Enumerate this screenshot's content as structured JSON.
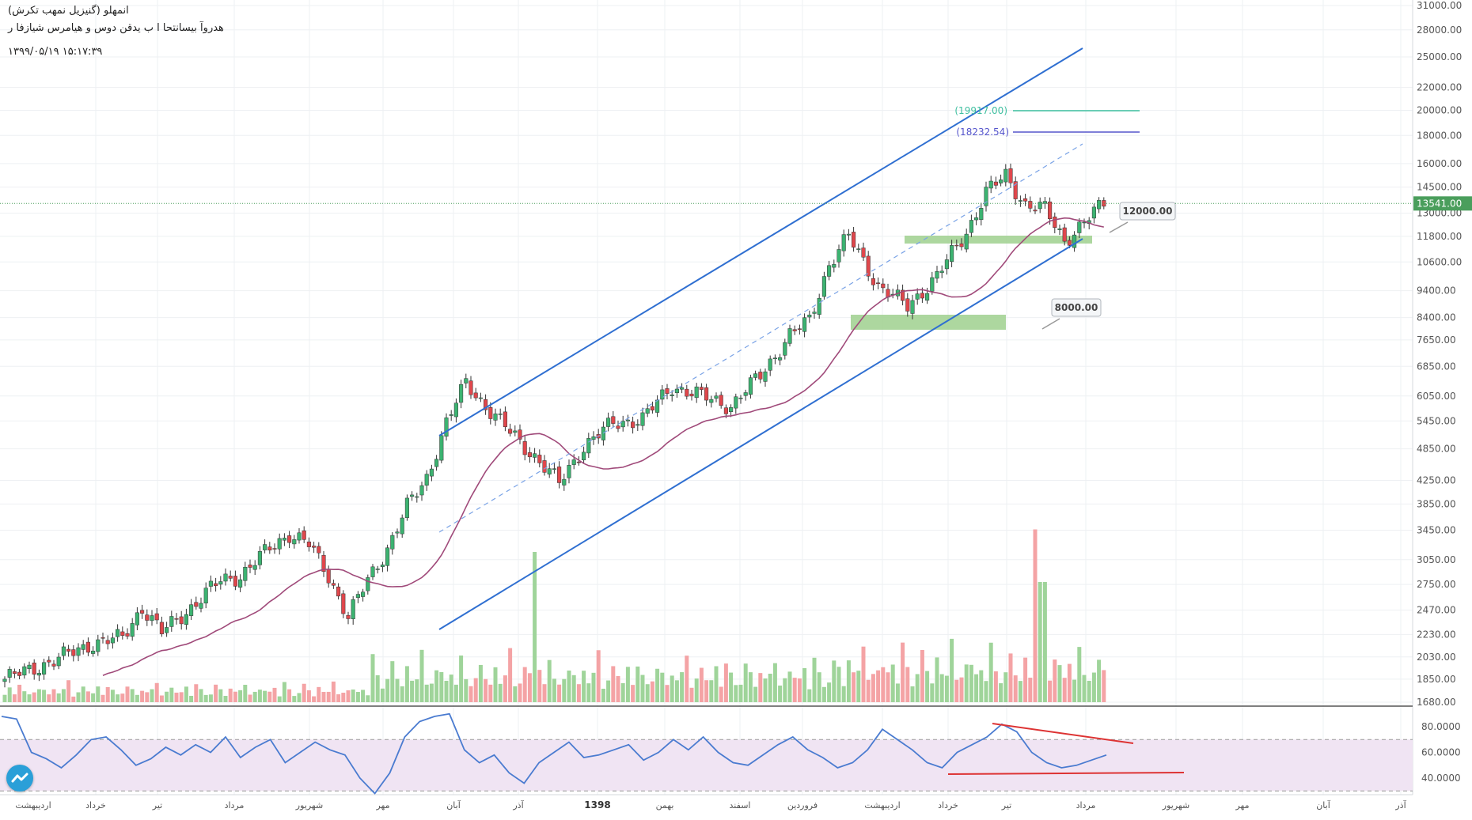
{
  "header": {
    "line1": "(گنیزیل نمهب تکرش) انمهلو",
    "line2": "هدروآ بیسانتحا ا ب یدقن دوس و هیامرس شیازفا ر",
    "line3": "۱۳۹۹/۰۵/۱۹   ۱۵:۱۷:۳۹"
  },
  "colors": {
    "up": "#3cb371",
    "down": "#e0474c",
    "vol_up": "#9fd49a",
    "vol_down": "#f4a3a5",
    "ma": "#a04a7a",
    "channel": "#2f6fd1",
    "rsi": "#4a7bd0",
    "rsi_band": "#f0e4f3",
    "price_badge": "#4a9e5c",
    "fib1": "#3fbfa0",
    "fib2": "#5555cc",
    "zone": "#9fd08e"
  },
  "chart_data": {
    "type": "candlestick",
    "x_axis_months": [
      "اردیبهشت",
      "خرداد",
      "تیر",
      "مرداد",
      "شهریور",
      "مهر",
      "آبان",
      "آذر",
      "1398",
      "بهمن",
      "اسفند",
      "فروردین",
      "اردیبهشت",
      "خرداد",
      "تیر",
      "مرداد",
      "شهریور",
      "مهر",
      "آبان",
      "آذر"
    ],
    "price_axis_ticks": [
      "31000.00",
      "28000.00",
      "25000.00",
      "22000.00",
      "20000.00",
      "18000.00",
      "16000.00",
      "14500.00",
      "13000.00",
      "11800.00",
      "10600.00",
      "9400.00",
      "8400.00",
      "7650.00",
      "6850.00",
      "6050.00",
      "5450.00",
      "4850.00",
      "4250.00",
      "3850.00",
      "3450.00",
      "3050.00",
      "2750.00",
      "2470.00",
      "2230.00",
      "2030.00",
      "1850.00",
      "1680.00"
    ],
    "last_price": "13541.00",
    "annotations": {
      "fib_level_1": "(19917.00)",
      "fib_level_2": "(18232.54)",
      "target_1": "12000.00",
      "target_2": "8000.00"
    },
    "rsi_axis_ticks": [
      "80.0000",
      "60.0000",
      "40.0000"
    ],
    "price_scale": "log",
    "anchors": [
      [
        0,
        1850
      ],
      [
        10,
        2000
      ],
      [
        18,
        2150
      ],
      [
        24,
        2200
      ],
      [
        28,
        2500
      ],
      [
        32,
        2250
      ],
      [
        38,
        2500
      ],
      [
        44,
        2800
      ],
      [
        48,
        2850
      ],
      [
        54,
        3200
      ],
      [
        58,
        3400
      ],
      [
        62,
        3250
      ],
      [
        66,
        2850
      ],
      [
        70,
        2400
      ],
      [
        74,
        2800
      ],
      [
        78,
        3200
      ],
      [
        82,
        3800
      ],
      [
        86,
        4300
      ],
      [
        90,
        5400
      ],
      [
        94,
        6400
      ],
      [
        98,
        5800
      ],
      [
        103,
        5200
      ],
      [
        108,
        4700
      ],
      [
        113,
        4200
      ],
      [
        118,
        4900
      ],
      [
        124,
        5400
      ],
      [
        130,
        5500
      ],
      [
        136,
        6300
      ],
      [
        142,
        6050
      ],
      [
        148,
        5800
      ],
      [
        154,
        6600
      ],
      [
        160,
        7800
      ],
      [
        164,
        8300
      ],
      [
        168,
        10500
      ],
      [
        172,
        11800
      ],
      [
        178,
        9600
      ],
      [
        184,
        8800
      ],
      [
        190,
        10000
      ],
      [
        196,
        12000
      ],
      [
        200,
        14200
      ],
      [
        204,
        15200
      ],
      [
        208,
        13500
      ],
      [
        212,
        13200
      ],
      [
        216,
        11600
      ],
      [
        220,
        12500
      ],
      [
        224,
        13541
      ]
    ],
    "volume_pattern": [
      0.4,
      0.6,
      0.3,
      0.8,
      0.5,
      0.3,
      0.4,
      0.7,
      0.5,
      0.3,
      0.6,
      0.4,
      0.5,
      0.9,
      0.3,
      0.4,
      0.6,
      0.5
    ],
    "ma_period": 20,
    "rsi_values": [
      88,
      86,
      60,
      55,
      48,
      58,
      70,
      72,
      62,
      50,
      55,
      64,
      58,
      66,
      60,
      72,
      56,
      64,
      70,
      52,
      60,
      68,
      62,
      58,
      40,
      28,
      44,
      72,
      84,
      88,
      90,
      62,
      52,
      58,
      44,
      36,
      52,
      60,
      68,
      56,
      58,
      62,
      66,
      54,
      60,
      70,
      62,
      72,
      60,
      52,
      50,
      58,
      66,
      72,
      62,
      56,
      48,
      52,
      62,
      78,
      70,
      62,
      52,
      48,
      60,
      66,
      72,
      82,
      76,
      60,
      52,
      48,
      50,
      54,
      58
    ],
    "rsi_divergence_text": ""
  }
}
